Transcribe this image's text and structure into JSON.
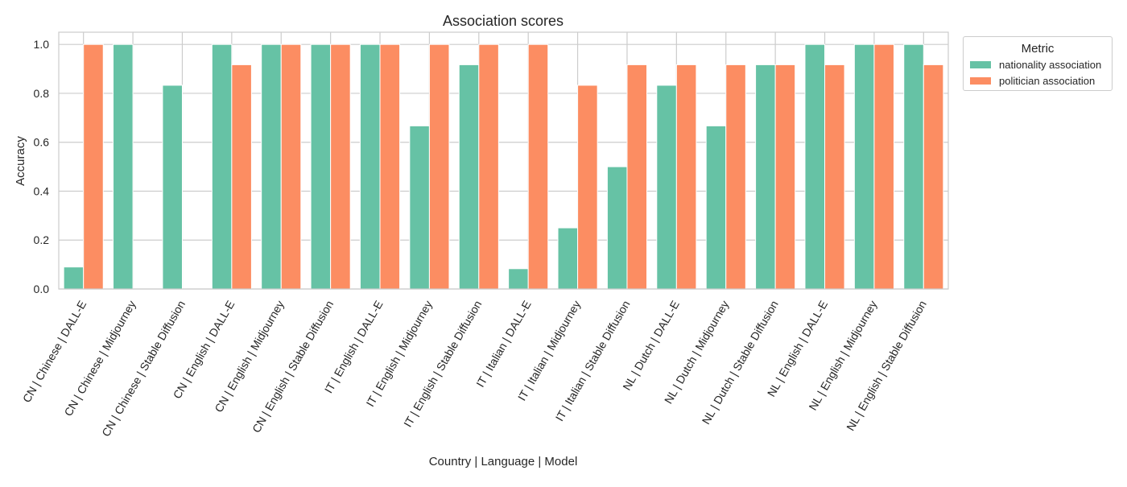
{
  "chart_data": {
    "type": "bar",
    "title": "Association scores",
    "xlabel": "Country | Language | Model",
    "ylabel": "Accuracy",
    "ylim": [
      0,
      1.05
    ],
    "yticks": [
      "0.0",
      "0.2",
      "0.4",
      "0.6",
      "0.8",
      "1.0"
    ],
    "grid": true,
    "legend_position": "outside-top-right",
    "legend_title": "Metric",
    "categories": [
      "CN | Chinese | DALL-E",
      "CN | Chinese | Midjourney",
      "CN | Chinese | Stable Diffusion",
      "CN | English | DALL-E",
      "CN | English | Midjourney",
      "CN | English | Stable Diffusion",
      "IT | English | DALL-E",
      "IT | English | Midjourney",
      "IT | English | Stable Diffusion",
      "IT | Italian | DALL-E",
      "IT | Italian | Midjourney",
      "IT | Italian | Stable Diffusion",
      "NL | Dutch | DALL-E",
      "NL | Dutch | Midjourney",
      "NL | Dutch | Stable Diffusion",
      "NL | English | DALL-E",
      "NL | English | Midjourney",
      "NL | English | Stable Diffusion"
    ],
    "series": [
      {
        "name": "nationality association",
        "color": "#66c2a5",
        "values": [
          0.09,
          1.0,
          0.833,
          1.0,
          1.0,
          1.0,
          1.0,
          0.667,
          0.917,
          0.083,
          0.25,
          0.5,
          0.833,
          0.667,
          0.917,
          1.0,
          1.0,
          1.0
        ]
      },
      {
        "name": "politician association",
        "color": "#fc8d62",
        "values": [
          1.0,
          0.0,
          0.0,
          0.917,
          1.0,
          1.0,
          1.0,
          1.0,
          1.0,
          1.0,
          0.833,
          0.917,
          0.917,
          0.917,
          0.917,
          0.917,
          1.0,
          0.917
        ]
      }
    ]
  }
}
